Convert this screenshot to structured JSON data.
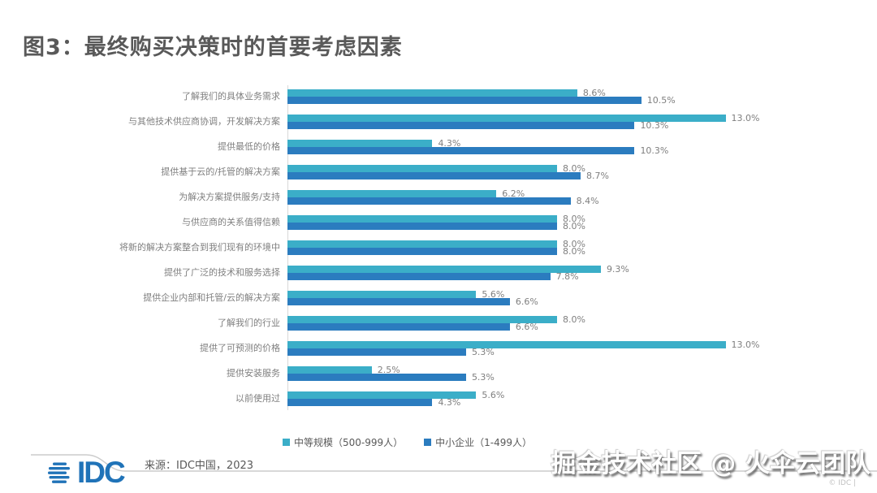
{
  "title": "图3：最终购买决策时的首要考虑因素",
  "source": "来源：IDC中国，2023",
  "watermark": "掘金技术社区 @ 火伞云团队",
  "copyright_note": "© IDC |",
  "logo_text": "IDC",
  "colors": {
    "series_medium": "#3baec8",
    "series_small": "#2b7cbf",
    "axis_line": "#d9d9d9",
    "label_gray": "#7f7f7f",
    "title_gray": "#595959",
    "logo_blue": "#2073b8",
    "footer_line": "#cccccc"
  },
  "chart_data": {
    "type": "bar",
    "orientation": "horizontal",
    "value_suffix": "%",
    "xlim": [
      0,
      16.6
    ],
    "grid": false,
    "legend_position": "bottom",
    "categories": [
      "了解我们的具体业务需求",
      "与其他技术供应商协调，开发解决方案",
      "提供最低的价格",
      "提供基于云的/托管的解决方案",
      "为解决方案提供服务/支持",
      "与供应商的关系值得信赖",
      "将新的解决方案整合到我们现有的环境中",
      "提供了广泛的技术和服务选择",
      "提供企业内部和托管/云的解决方案",
      "了解我们的行业",
      "提供了可预测的价格",
      "提供安装服务",
      "以前使用过"
    ],
    "series": [
      {
        "name": "中等规模（500-999人）",
        "color": "#3baec8",
        "values": [
          8.6,
          13.0,
          4.3,
          8.0,
          6.2,
          8.0,
          8.0,
          9.3,
          5.6,
          8.0,
          13.0,
          2.5,
          5.6
        ]
      },
      {
        "name": "中小企业（1-499人）",
        "color": "#2b7cbf",
        "values": [
          10.5,
          10.3,
          10.3,
          8.7,
          8.4,
          8.0,
          8.0,
          7.8,
          6.6,
          6.6,
          5.3,
          5.3,
          4.3
        ]
      }
    ]
  }
}
